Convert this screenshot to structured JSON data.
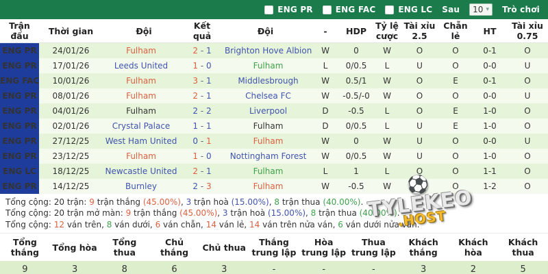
{
  "topbar": {
    "leagues": [
      {
        "label": "ENG PR"
      },
      {
        "label": "ENG FAC"
      },
      {
        "label": "ENG LC"
      }
    ],
    "after_label": "Sau",
    "count_value": "10",
    "game_label": "Trò chơi"
  },
  "table": {
    "headers": [
      "Trận đấu",
      "Thời gian",
      "Đội",
      "Kết quả",
      "Đội",
      "-",
      "HDP",
      "Tỷ lệ cược",
      "Tài xỉu 2.5",
      "Chẵn lẻ",
      "HT",
      "Tài xỉu 0.75"
    ],
    "rows": [
      {
        "league": "ENG PR",
        "date": "24/01/26",
        "home": {
          "n": "Fulham",
          "c": "red"
        },
        "score": {
          "h": "2",
          "hc": "red",
          "a": "1",
          "ac": "blue"
        },
        "away": {
          "n": "Brighton Hove Albion",
          "c": "blue"
        },
        "cells": [
          {
            "v": "W",
            "c": "red"
          },
          {
            "v": "0",
            "c": "dark"
          },
          {
            "v": "W",
            "c": "red"
          },
          {
            "v": "O",
            "c": "red"
          },
          {
            "v": "O",
            "c": "green"
          },
          {
            "v": "0-1",
            "c": "dark"
          },
          {
            "v": "O",
            "c": "green"
          }
        ]
      },
      {
        "league": "ENG PR",
        "date": "17/01/26",
        "home": {
          "n": "Leeds United",
          "c": "blue"
        },
        "score": {
          "h": "1",
          "hc": "red",
          "a": "0",
          "ac": "blue"
        },
        "away": {
          "n": "Fulham",
          "c": "green"
        },
        "cells": [
          {
            "v": "L",
            "c": "green"
          },
          {
            "v": "0/0.5",
            "c": "dark"
          },
          {
            "v": "L",
            "c": "green"
          },
          {
            "v": "U",
            "c": "green"
          },
          {
            "v": "O",
            "c": "green"
          },
          {
            "v": "0-0",
            "c": "dark"
          },
          {
            "v": "U",
            "c": "blue"
          }
        ]
      },
      {
        "league": "ENG FAC",
        "date": "10/01/26",
        "home": {
          "n": "Fulham",
          "c": "red"
        },
        "score": {
          "h": "3",
          "hc": "red",
          "a": "1",
          "ac": "blue"
        },
        "away": {
          "n": "Middlesbrough",
          "c": "blue"
        },
        "cells": [
          {
            "v": "W",
            "c": "red"
          },
          {
            "v": "0.5/1",
            "c": "dark"
          },
          {
            "v": "W",
            "c": "red"
          },
          {
            "v": "O",
            "c": "red"
          },
          {
            "v": "E",
            "c": "red"
          },
          {
            "v": "0-1",
            "c": "dark"
          },
          {
            "v": "O",
            "c": "green"
          }
        ]
      },
      {
        "league": "ENG PR",
        "date": "08/01/26",
        "home": {
          "n": "Fulham",
          "c": "red"
        },
        "score": {
          "h": "2",
          "hc": "red",
          "a": "1",
          "ac": "blue"
        },
        "away": {
          "n": "Chelsea FC",
          "c": "blue"
        },
        "cells": [
          {
            "v": "W",
            "c": "red"
          },
          {
            "v": "-0.5/-0",
            "c": "dark"
          },
          {
            "v": "W",
            "c": "red"
          },
          {
            "v": "O",
            "c": "red"
          },
          {
            "v": "O",
            "c": "green"
          },
          {
            "v": "0-0",
            "c": "dark"
          },
          {
            "v": "U",
            "c": "blue"
          }
        ]
      },
      {
        "league": "ENG PR",
        "date": "04/01/26",
        "home": {
          "n": "Fulham",
          "c": "dark"
        },
        "score": {
          "h": "2",
          "hc": "blue",
          "a": "2",
          "ac": "blue"
        },
        "away": {
          "n": "Liverpool",
          "c": "blue"
        },
        "cells": [
          {
            "v": "D",
            "c": "blue"
          },
          {
            "v": "-0.5",
            "c": "dark"
          },
          {
            "v": "L",
            "c": "green"
          },
          {
            "v": "O",
            "c": "red"
          },
          {
            "v": "E",
            "c": "red"
          },
          {
            "v": "1-0",
            "c": "dark"
          },
          {
            "v": "O",
            "c": "green"
          }
        ]
      },
      {
        "league": "ENG PR",
        "date": "02/01/26",
        "home": {
          "n": "Crystal Palace",
          "c": "blue"
        },
        "score": {
          "h": "1",
          "hc": "blue",
          "a": "1",
          "ac": "blue"
        },
        "away": {
          "n": "Fulham",
          "c": "dark"
        },
        "cells": [
          {
            "v": "D",
            "c": "blue"
          },
          {
            "v": "0/0.5",
            "c": "dark"
          },
          {
            "v": "L",
            "c": "green"
          },
          {
            "v": "U",
            "c": "green"
          },
          {
            "v": "E",
            "c": "red"
          },
          {
            "v": "1-0",
            "c": "dark"
          },
          {
            "v": "O",
            "c": "green"
          }
        ]
      },
      {
        "league": "ENG PR",
        "date": "27/12/25",
        "home": {
          "n": "West Ham United",
          "c": "blue"
        },
        "score": {
          "h": "0",
          "hc": "blue",
          "a": "1",
          "ac": "red"
        },
        "away": {
          "n": "Fulham",
          "c": "red"
        },
        "cells": [
          {
            "v": "W",
            "c": "red"
          },
          {
            "v": "0",
            "c": "dark"
          },
          {
            "v": "W",
            "c": "red"
          },
          {
            "v": "U",
            "c": "green"
          },
          {
            "v": "O",
            "c": "green"
          },
          {
            "v": "0-0",
            "c": "dark"
          },
          {
            "v": "U",
            "c": "blue"
          }
        ]
      },
      {
        "league": "ENG PR",
        "date": "23/12/25",
        "home": {
          "n": "Fulham",
          "c": "red"
        },
        "score": {
          "h": "1",
          "hc": "red",
          "a": "0",
          "ac": "blue"
        },
        "away": {
          "n": "Nottingham Forest",
          "c": "blue"
        },
        "cells": [
          {
            "v": "W",
            "c": "red"
          },
          {
            "v": "0/0.5",
            "c": "dark"
          },
          {
            "v": "W",
            "c": "red"
          },
          {
            "v": "U",
            "c": "green"
          },
          {
            "v": "O",
            "c": "green"
          },
          {
            "v": "1-0",
            "c": "dark"
          },
          {
            "v": "O",
            "c": "green"
          }
        ]
      },
      {
        "league": "ENG LC",
        "date": "18/12/25",
        "home": {
          "n": "Newcastle United",
          "c": "blue"
        },
        "score": {
          "h": "2",
          "hc": "red",
          "a": "1",
          "ac": "blue"
        },
        "away": {
          "n": "Fulham",
          "c": "green"
        },
        "cells": [
          {
            "v": "L",
            "c": "green"
          },
          {
            "v": "1",
            "c": "dark"
          },
          {
            "v": "L",
            "c": "green"
          },
          {
            "v": "O",
            "c": "red"
          },
          {
            "v": "O",
            "c": "green"
          },
          {
            "v": "1-1",
            "c": "dark"
          },
          {
            "v": "O",
            "c": "green"
          }
        ]
      },
      {
        "league": "ENG PR",
        "date": "14/12/25",
        "home": {
          "n": "Burnley",
          "c": "blue"
        },
        "score": {
          "h": "2",
          "hc": "blue",
          "a": "3",
          "ac": "red"
        },
        "away": {
          "n": "Fulham",
          "c": "red"
        },
        "cells": [
          {
            "v": "W",
            "c": "red"
          },
          {
            "v": "-0.5",
            "c": "dark"
          },
          {
            "v": "W",
            "c": "red"
          },
          {
            "v": "O",
            "c": "red"
          },
          {
            "v": "O",
            "c": "green"
          },
          {
            "v": "1-2",
            "c": "dark"
          },
          {
            "v": "O",
            "c": "green"
          }
        ]
      }
    ]
  },
  "summary": {
    "lines": [
      [
        {
          "t": "Tổng cộng: 20 trận: ",
          "c": "dark"
        },
        {
          "t": "9",
          "c": "red"
        },
        {
          "t": " trận thắng ",
          "c": "dark"
        },
        {
          "t": "(45.00%)",
          "c": "red"
        },
        {
          "t": ", ",
          "c": "dark"
        },
        {
          "t": "3",
          "c": "blue"
        },
        {
          "t": " trận hoà ",
          "c": "dark"
        },
        {
          "t": "(15.00%)",
          "c": "blue"
        },
        {
          "t": ", ",
          "c": "dark"
        },
        {
          "t": "8",
          "c": "green"
        },
        {
          "t": " trận thua ",
          "c": "dark"
        },
        {
          "t": "(40.00%)",
          "c": "green"
        },
        {
          "t": ".",
          "c": "dark"
        }
      ],
      [
        {
          "t": "Tổng cộng: 20 trận mở màn: ",
          "c": "dark"
        },
        {
          "t": "9",
          "c": "red"
        },
        {
          "t": " trận thắng ",
          "c": "dark"
        },
        {
          "t": "(45.00%)",
          "c": "red"
        },
        {
          "t": ", ",
          "c": "dark"
        },
        {
          "t": "3",
          "c": "blue"
        },
        {
          "t": " trận hoà ",
          "c": "dark"
        },
        {
          "t": "(15.00%)",
          "c": "blue"
        },
        {
          "t": ", ",
          "c": "dark"
        },
        {
          "t": "8",
          "c": "green"
        },
        {
          "t": " trận thua ",
          "c": "dark"
        },
        {
          "t": "(40.00%)",
          "c": "green"
        },
        {
          "t": ".",
          "c": "dark"
        }
      ],
      [
        {
          "t": "Tổng cộng: ",
          "c": "dark"
        },
        {
          "t": "12",
          "c": "red"
        },
        {
          "t": " ván trên, ",
          "c": "dark"
        },
        {
          "t": "8",
          "c": "green"
        },
        {
          "t": " ván dưới, ",
          "c": "dark"
        },
        {
          "t": "6",
          "c": "red"
        },
        {
          "t": " ván chẵn, ",
          "c": "dark"
        },
        {
          "t": "14",
          "c": "red"
        },
        {
          "t": " ván lẻ, ",
          "c": "dark"
        },
        {
          "t": "14",
          "c": "red"
        },
        {
          "t": " ván trên nửa ván, ",
          "c": "dark"
        },
        {
          "t": "6",
          "c": "green"
        },
        {
          "t": " ván dưới nửa ván.",
          "c": "dark"
        }
      ]
    ]
  },
  "stats": {
    "headers": [
      "Tổng thắng",
      "Tổng hòa",
      "Tổng thua",
      "Chủ thắng",
      "Chủ thua",
      "Thắng trung lập",
      "Hòa trung lập",
      "Thua trung lập",
      "Khách thắng",
      "Khách hòa",
      "Khách thua"
    ],
    "values": [
      "9",
      "3",
      "8",
      "6",
      "3",
      "-",
      "-",
      "-",
      "3",
      "2",
      "5"
    ]
  },
  "watermark": {
    "ball": "⚽",
    "line1": "TYLEKEO",
    "line2": ".HOST"
  }
}
